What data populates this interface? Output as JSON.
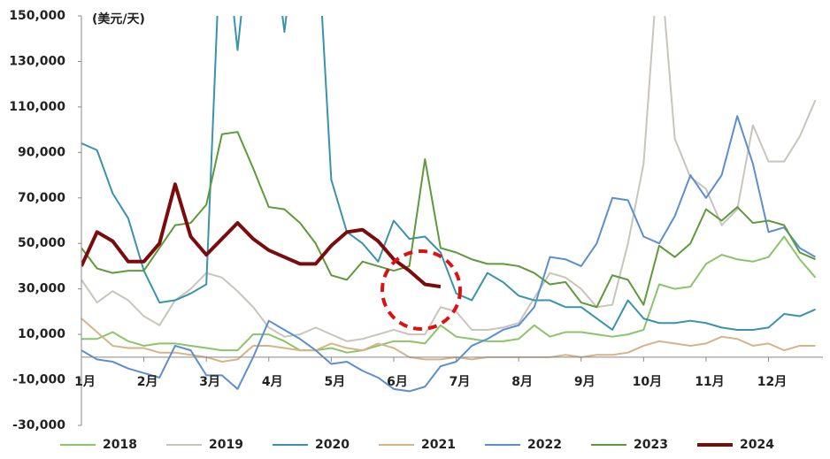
{
  "chart_data": {
    "type": "line",
    "unit_label": "(美元/天)",
    "x": [
      1,
      1.25,
      1.5,
      1.75,
      2,
      2.25,
      2.5,
      2.75,
      3,
      3.25,
      3.5,
      3.75,
      4,
      4.25,
      4.5,
      4.75,
      5,
      5.25,
      5.5,
      5.75,
      6,
      6.25,
      6.5,
      6.75,
      7,
      7.25,
      7.5,
      7.75,
      8,
      8.25,
      8.5,
      8.75,
      9,
      9.25,
      9.5,
      9.75,
      10,
      10.25,
      10.5,
      10.75,
      11,
      11.25,
      11.5,
      11.75,
      12,
      12.25,
      12.5,
      12.75
    ],
    "xlim": [
      1,
      12.8
    ],
    "xticks": [
      {
        "value": 1,
        "label": "1月"
      },
      {
        "value": 2,
        "label": "2月"
      },
      {
        "value": 3,
        "label": "3月"
      },
      {
        "value": 4,
        "label": "4月"
      },
      {
        "value": 5,
        "label": "5月"
      },
      {
        "value": 6,
        "label": "6月"
      },
      {
        "value": 7,
        "label": "7月"
      },
      {
        "value": 8,
        "label": "8月"
      },
      {
        "value": 9,
        "label": "9月"
      },
      {
        "value": 10,
        "label": "10月"
      },
      {
        "value": 11,
        "label": "11月"
      },
      {
        "value": 12,
        "label": "12月"
      }
    ],
    "ylim": [
      -30000,
      150000
    ],
    "yticks": [
      {
        "value": -30000,
        "label": "-30,000"
      },
      {
        "value": -10000,
        "label": "-10,000"
      },
      {
        "value": 10000,
        "label": "10,000"
      },
      {
        "value": 30000,
        "label": "30,000"
      },
      {
        "value": 50000,
        "label": "50,000"
      },
      {
        "value": 70000,
        "label": "70,000"
      },
      {
        "value": 90000,
        "label": "90,000"
      },
      {
        "value": 110000,
        "label": "110,000"
      },
      {
        "value": 130000,
        "label": "130,000"
      },
      {
        "value": 150000,
        "label": "150,000"
      }
    ],
    "series": [
      {
        "name": "2018",
        "color": "#8cc46a",
        "width": 2,
        "values": [
          8000,
          8000,
          11000,
          7000,
          5000,
          6000,
          6000,
          5000,
          4000,
          3000,
          3000,
          10000,
          10000,
          7000,
          3000,
          3000,
          4000,
          2000,
          3000,
          5000,
          7000,
          7000,
          6000,
          14000,
          9000,
          8000,
          7000,
          7000,
          8000,
          14000,
          9000,
          11000,
          11000,
          10000,
          9000,
          10000,
          12000,
          32000,
          30000,
          31000,
          41000,
          45000,
          43000,
          42000,
          44000,
          53000,
          43000,
          35000
        ]
      },
      {
        "name": "2019",
        "color": "#c9c4bc",
        "width": 2,
        "values": [
          34000,
          24000,
          29000,
          25000,
          18000,
          14000,
          25000,
          30000,
          37000,
          35000,
          29000,
          22000,
          13000,
          9000,
          10000,
          13000,
          10000,
          7000,
          8000,
          10000,
          12000,
          10000,
          10000,
          22000,
          20000,
          12000,
          12000,
          13000,
          15000,
          26000,
          37000,
          35000,
          30000,
          22000,
          23000,
          50000,
          85000,
          180000,
          96000,
          79000,
          74000,
          58000,
          65000,
          102000,
          86000,
          86000,
          97000,
          113000
        ]
      },
      {
        "name": "2020",
        "color": "#3a93ad",
        "width": 2,
        "values": [
          94000,
          91000,
          72000,
          61000,
          38000,
          24000,
          25000,
          28000,
          32000,
          200000,
          135000,
          200000,
          200000,
          143000,
          200000,
          200000,
          78000,
          55000,
          50000,
          42000,
          60000,
          52000,
          53000,
          46000,
          28000,
          25000,
          37000,
          33000,
          27000,
          25000,
          25000,
          22000,
          22000,
          17000,
          12000,
          25000,
          17000,
          15000,
          15000,
          16000,
          15000,
          13000,
          12000,
          12000,
          13000,
          19000,
          18000,
          21000
        ]
      },
      {
        "name": "2021",
        "color": "#d7b486",
        "width": 2,
        "values": [
          17000,
          11000,
          5000,
          4000,
          4000,
          2000,
          2000,
          1000,
          0,
          -2000,
          -1000,
          5000,
          5000,
          4000,
          3000,
          3000,
          6000,
          4000,
          3000,
          6000,
          4000,
          0,
          -1000,
          -1000,
          0,
          -1000,
          0,
          0,
          0,
          0,
          0,
          1000,
          0,
          1000,
          1000,
          2000,
          5000,
          7000,
          6000,
          5000,
          6000,
          9000,
          8000,
          5000,
          6000,
          3000,
          5000,
          5000
        ]
      },
      {
        "name": "2022",
        "color": "#5b8fd1",
        "width": 2,
        "values": [
          3000,
          -1000,
          -2000,
          -5000,
          -7000,
          -9000,
          5000,
          3000,
          -8000,
          -8000,
          -14000,
          0,
          16000,
          12000,
          8000,
          3000,
          -3000,
          -2000,
          -6000,
          -9000,
          -14000,
          -15000,
          -13000,
          -4000,
          -2000,
          5000,
          8000,
          12000,
          14000,
          22000,
          44000,
          43000,
          40000,
          50000,
          70000,
          69000,
          53000,
          50000,
          62000,
          80000,
          70000,
          80000,
          106000,
          85000,
          55000,
          57000,
          48000,
          44000
        ]
      },
      {
        "name": "2023",
        "color": "#5e9a3a",
        "width": 2,
        "values": [
          48000,
          39000,
          37000,
          38000,
          38000,
          48000,
          58000,
          59000,
          67000,
          98000,
          99000,
          83000,
          66000,
          65000,
          59000,
          50000,
          36000,
          34000,
          42000,
          40000,
          38000,
          40000,
          87000,
          48000,
          46000,
          43000,
          41000,
          41000,
          40000,
          37000,
          32000,
          33000,
          24000,
          22000,
          36000,
          34000,
          23000,
          49000,
          44000,
          50000,
          65000,
          60000,
          66000,
          59000,
          60000,
          58000,
          46000,
          43000
        ]
      },
      {
        "name": "2024",
        "color": "#7b0c0c",
        "width": 4,
        "values": [
          40000,
          55000,
          51000,
          42000,
          42000,
          50000,
          76000,
          53000,
          45000,
          52000,
          59000,
          52000,
          47000,
          44000,
          41000,
          41000,
          49000,
          55000,
          56000,
          51000,
          43000,
          38000,
          32000,
          31000,
          null,
          null,
          null,
          null,
          null,
          null,
          null,
          null,
          null,
          null,
          null,
          null,
          null,
          null,
          null,
          null,
          null,
          null,
          null,
          null,
          null,
          null,
          null,
          null
        ]
      }
    ]
  }
}
